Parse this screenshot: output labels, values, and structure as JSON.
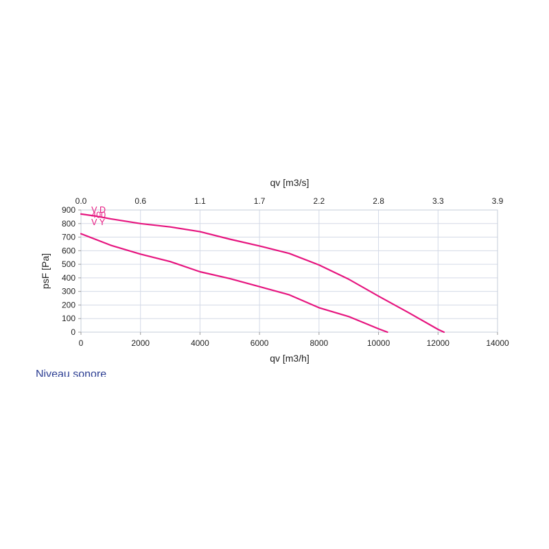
{
  "chart_data": {
    "type": "line",
    "xlabel": "qv [m3/h]",
    "x2label": "qv [m3/s]",
    "ylabel": "psF [Pa]",
    "xlim": [
      0,
      14000
    ],
    "ylim": [
      0,
      900
    ],
    "x_ticks": [
      "0",
      "2000",
      "4000",
      "6000",
      "8000",
      "10000",
      "12000",
      "14000"
    ],
    "x2_ticks": [
      "0.0",
      "0.6",
      "1.1",
      "1.7",
      "2.2",
      "2.8",
      "3.3",
      "3.9"
    ],
    "y_ticks": [
      "0",
      "100",
      "200",
      "300",
      "400",
      "500",
      "600",
      "700",
      "800",
      "900"
    ],
    "grid": true,
    "series": [
      {
        "name": "V D",
        "color": "#e6157f",
        "x": [
          0,
          500,
          1000,
          2000,
          3000,
          4000,
          5000,
          6000,
          7000,
          8000,
          9000,
          10000,
          11000,
          12000,
          12200
        ],
        "y": [
          870,
          855,
          835,
          800,
          775,
          740,
          685,
          635,
          580,
          495,
          390,
          265,
          145,
          20,
          0
        ]
      },
      {
        "name": "V Y",
        "color": "#e6157f",
        "x": [
          0,
          1000,
          2000,
          3000,
          4000,
          5000,
          6000,
          7000,
          8000,
          9000,
          10000,
          10300
        ],
        "y": [
          725,
          640,
          575,
          520,
          445,
          395,
          335,
          275,
          180,
          115,
          25,
          0
        ]
      }
    ],
    "annotations": [
      {
        "text": "V D",
        "x": 350,
        "y": 900
      },
      {
        "text": "400",
        "x": 350,
        "y": 862
      },
      {
        "text": "V Y",
        "x": 350,
        "y": 808
      }
    ]
  },
  "below_chart": {
    "heading": "Niveau sonore"
  }
}
